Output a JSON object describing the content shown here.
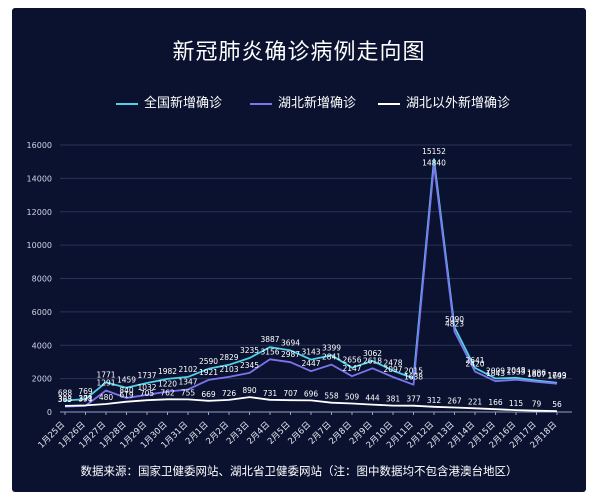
{
  "chart_data": {
    "type": "line",
    "title": "新冠肺炎确诊病例走向图",
    "source": "数据来源：国家卫健委网站、湖北省卫健委网站（注：图中数据均不包含港澳台地区）",
    "x": [
      "1月25日",
      "1月26日",
      "1月27日",
      "1月28日",
      "1月29日",
      "1月30日",
      "1月31日",
      "2月1日",
      "2月2日",
      "2月3日",
      "2月4日",
      "2月5日",
      "2月6日",
      "2月7日",
      "2月8日",
      "2月9日",
      "2月10日",
      "2月11日",
      "2月12日",
      "2月13日",
      "2月14日",
      "2月15日",
      "2月16日",
      "2月17日",
      "2月18日"
    ],
    "ylim": [
      0,
      16000
    ],
    "yticks": [
      0,
      2000,
      4000,
      6000,
      8000,
      10000,
      12000,
      14000,
      16000
    ],
    "grid": true,
    "legend_position": "top",
    "series": [
      {
        "name": "全国新增确诊",
        "color": "#4fd1e6",
        "values": [
          688,
          769,
          1771,
          1459,
          1737,
          1982,
          2102,
          2590,
          2829,
          3235,
          3887,
          3694,
          3143,
          3399,
          2656,
          3062,
          2478,
          2015,
          15152,
          5090,
          2641,
          2009,
          2048,
          1886,
          1749
        ],
        "labels": [
          "688",
          "769",
          "1771",
          "1459",
          "1737",
          "1982",
          "2102",
          "2590",
          "2829",
          "3235",
          "3887",
          "3694",
          "3143",
          "3399",
          "2656",
          "3062",
          "2478",
          "2015",
          "15152",
          "5090",
          "2641",
          "2009",
          "2048",
          "1886",
          "1749"
        ]
      },
      {
        "name": "湖北新增确诊",
        "color": "#7b74ee",
        "values": [
          323,
          371,
          1291,
          840,
          1032,
          1220,
          1347,
          1921,
          2103,
          2345,
          3156,
          2987,
          2447,
          2841,
          2147,
          2618,
          2097,
          1638,
          14840,
          4823,
          2420,
          1843,
          1933,
          1807,
          1693
        ],
        "labels": [
          "323",
          "371",
          "1291",
          "840",
          "1032",
          "1220",
          "1347",
          "1921",
          "2103",
          "2345",
          "3156",
          "2987",
          "2447",
          "2841",
          "2147",
          "2618",
          "2097",
          "1638",
          "14840",
          "4823",
          "2420",
          "1843",
          "1933",
          "1807",
          "1693"
        ]
      },
      {
        "name": "湖北以外新增确诊",
        "color": "#ffffff",
        "values": [
          365,
          398,
          480,
          619,
          705,
          762,
          755,
          669,
          726,
          890,
          731,
          707,
          696,
          558,
          509,
          444,
          381,
          377,
          312,
          267,
          221,
          166,
          115,
          79,
          56
        ],
        "labels": [
          "365",
          "398",
          "480",
          "619",
          "705",
          "762",
          "755",
          "669",
          "726",
          "890",
          "731",
          "707",
          "696",
          "558",
          "509",
          "444",
          "381",
          "377",
          "312",
          "267",
          "221",
          "166",
          "115",
          "79",
          "56"
        ]
      }
    ]
  }
}
